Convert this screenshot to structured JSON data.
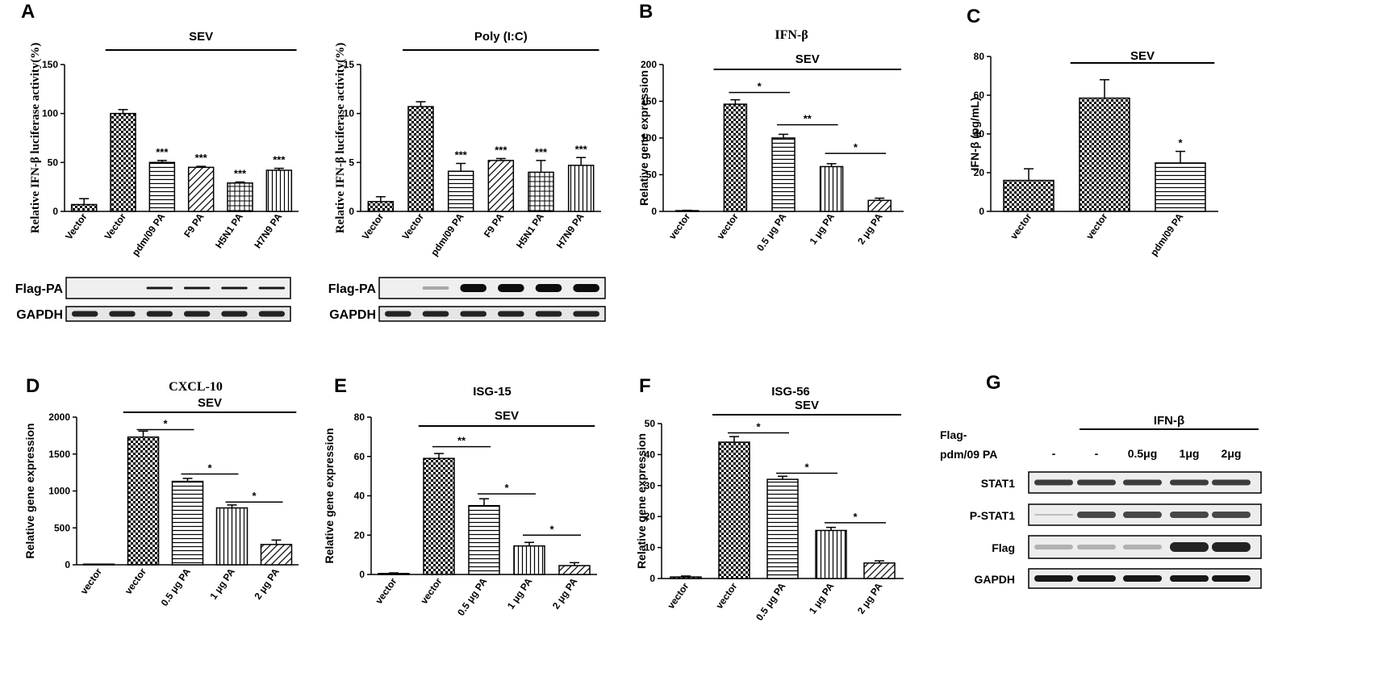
{
  "chart_data": [
    {
      "id": "A1",
      "type": "bar",
      "letter": "A",
      "title": "",
      "ylabel": "Relative IFN-β luciferase activity(%)",
      "xlabel": "",
      "ylim": [
        0,
        150
      ],
      "yticks": [
        0,
        50,
        100,
        150
      ],
      "categories": [
        "Vector",
        "Vector",
        "pdm/09 PA",
        "F9 PA",
        "H5N1 PA",
        "H7N9 PA"
      ],
      "values": [
        7,
        100,
        50,
        45,
        29,
        42
      ],
      "errors": [
        6,
        4,
        2,
        1,
        1,
        2
      ],
      "patterns": [
        "check",
        "check",
        "hstripe",
        "diag",
        "grid",
        "vstripe"
      ],
      "significance": [
        "",
        "",
        "***",
        "***",
        "***",
        "***"
      ],
      "treatment": {
        "label": "SEV",
        "from": 1,
        "to": 5
      },
      "brackets": [],
      "blot": {
        "rows": [
          "Flag-PA",
          "GAPDH"
        ]
      }
    },
    {
      "id": "A2",
      "type": "bar",
      "letter": "",
      "title": "",
      "ylabel": "Relative IFN-β luciferase activity(%)",
      "xlabel": "",
      "ylim": [
        0,
        15
      ],
      "yticks": [
        0,
        5,
        10,
        15
      ],
      "categories": [
        "Vector",
        "Vector",
        "pdm/09 PA",
        "F9 PA",
        "H5N1 PA",
        "H7N9 PA"
      ],
      "values": [
        1,
        10.7,
        4.1,
        5.2,
        4.0,
        4.7
      ],
      "errors": [
        0.5,
        0.5,
        0.8,
        0.2,
        1.2,
        0.8
      ],
      "patterns": [
        "check",
        "check",
        "hstripe",
        "diag",
        "grid",
        "vstripe"
      ],
      "significance": [
        "",
        "",
        "***",
        "***",
        "***",
        "***"
      ],
      "treatment": {
        "label": "Poly (I:C)",
        "from": 1,
        "to": 5
      },
      "brackets": [],
      "blot": {
        "rows": [
          "Flag-PA",
          "GAPDH"
        ]
      }
    },
    {
      "id": "B",
      "type": "bar",
      "letter": "B",
      "title": "IFN-β",
      "ylabel": "Relative gene expression",
      "xlabel": "",
      "ylim": [
        0,
        200
      ],
      "yticks": [
        0,
        50,
        100,
        150,
        200
      ],
      "categories": [
        "vector",
        "vector",
        "0.5 μg PA",
        "1 μg PA",
        "2 μg PA"
      ],
      "values": [
        1,
        146,
        100,
        61,
        15
      ],
      "errors": [
        0.5,
        6,
        5,
        4,
        3
      ],
      "patterns": [
        "check",
        "check",
        "hstripe",
        "vstripe",
        "diag"
      ],
      "significance": [],
      "treatment": {
        "label": "SEV",
        "from": 1,
        "to": 4
      },
      "brackets": [
        {
          "from": 1,
          "to": 2,
          "label": "*",
          "y": 162
        },
        {
          "from": 2,
          "to": 3,
          "label": "**",
          "y": 118
        },
        {
          "from": 3,
          "to": 4,
          "label": "*",
          "y": 79
        }
      ]
    },
    {
      "id": "C",
      "type": "bar",
      "letter": "C",
      "title": "",
      "ylabel": "IFN-β (pg/mL)",
      "xlabel": "",
      "ylim": [
        0,
        80
      ],
      "yticks": [
        0,
        20,
        40,
        60,
        80
      ],
      "categories": [
        "vector",
        "vector",
        "pdm/09 PA"
      ],
      "values": [
        16,
        58.5,
        25
      ],
      "errors": [
        6,
        9.5,
        6
      ],
      "patterns": [
        "check",
        "check",
        "hstripe"
      ],
      "significance": [
        "",
        "",
        "*"
      ],
      "treatment": {
        "label": "SEV",
        "from": 1,
        "to": 2
      },
      "brackets": []
    },
    {
      "id": "D",
      "type": "bar",
      "letter": "D",
      "title": "CXCL-10",
      "ylabel": "Relative gene expression",
      "xlabel": "",
      "ylim": [
        0,
        2000
      ],
      "yticks": [
        0,
        500,
        1000,
        1500,
        2000
      ],
      "categories": [
        "vector",
        "vector",
        "0.5 μg PA",
        "1 μg PA",
        "2 μg PA"
      ],
      "values": [
        0,
        1730,
        1130,
        770,
        275
      ],
      "errors": [
        0,
        80,
        40,
        40,
        60
      ],
      "patterns": [
        "check",
        "check",
        "hstripe",
        "vstripe",
        "diag"
      ],
      "significance": [],
      "treatment": {
        "label": "SEV",
        "from": 1,
        "to": 4
      },
      "brackets": [
        {
          "from": 1,
          "to": 2,
          "label": "*",
          "y": 1830
        },
        {
          "from": 2,
          "to": 3,
          "label": "*",
          "y": 1230
        },
        {
          "from": 3,
          "to": 4,
          "label": "*",
          "y": 850
        }
      ]
    },
    {
      "id": "E",
      "type": "bar",
      "letter": "E",
      "title": "ISG-15",
      "ylabel": "Relative gene expression",
      "xlabel": "",
      "ylim": [
        0,
        80
      ],
      "yticks": [
        0,
        20,
        40,
        60,
        80
      ],
      "categories": [
        "vector",
        "vector",
        "0.5 μg PA",
        "1 μg PA",
        "2 μg PA"
      ],
      "values": [
        0.5,
        59,
        35,
        14.5,
        4.5
      ],
      "errors": [
        0.3,
        2.5,
        3.5,
        1.8,
        1.5
      ],
      "patterns": [
        "check",
        "check",
        "hstripe",
        "vstripe",
        "diag"
      ],
      "significance": [],
      "treatment": {
        "label": "SEV",
        "from": 1,
        "to": 4
      },
      "brackets": [
        {
          "from": 1,
          "to": 2,
          "label": "**",
          "y": 65
        },
        {
          "from": 2,
          "to": 3,
          "label": "*",
          "y": 41
        },
        {
          "from": 3,
          "to": 4,
          "label": "*",
          "y": 20
        }
      ]
    },
    {
      "id": "F",
      "type": "bar",
      "letter": "F",
      "title": "ISG-56",
      "ylabel": "Relative gene expression",
      "xlabel": "",
      "ylim": [
        0,
        50
      ],
      "yticks": [
        0,
        10,
        20,
        30,
        40,
        50
      ],
      "categories": [
        "vector",
        "vector",
        "0.5 μg PA",
        "1 μg PA",
        "2 μg PA"
      ],
      "values": [
        0.5,
        44,
        32,
        15.5,
        5
      ],
      "errors": [
        0.3,
        1.8,
        1,
        1,
        0.7
      ],
      "patterns": [
        "check",
        "check",
        "hstripe",
        "vstripe",
        "diag"
      ],
      "significance": [],
      "treatment": {
        "label": "SEV",
        "from": 1,
        "to": 4
      },
      "brackets": [
        {
          "from": 1,
          "to": 2,
          "label": "*",
          "y": 47
        },
        {
          "from": 2,
          "to": 3,
          "label": "*",
          "y": 34
        },
        {
          "from": 3,
          "to": 4,
          "label": "*",
          "y": 18
        }
      ]
    }
  ],
  "panel_g": {
    "letter": "G",
    "treatment": "IFN-β",
    "row_label_line1": "Flag-",
    "row_label_line2": "pdm/09 PA",
    "lanes": [
      "-",
      "-",
      "0.5μg",
      "1μg",
      "2μg"
    ],
    "blots": [
      "STAT1",
      "P-STAT1",
      "Flag",
      "GAPDH"
    ]
  },
  "colors": {
    "ink": "#000000",
    "background": "#ffffff"
  }
}
